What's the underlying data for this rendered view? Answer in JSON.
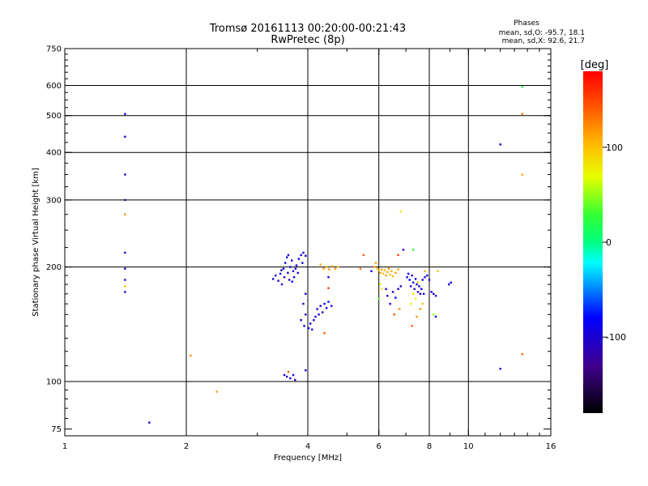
{
  "chart_data": {
    "type": "scatter",
    "title_line1": "Tromsø 20161113 00:20:00-00:21:43",
    "title_line2": "RwPretec (8p)",
    "info": {
      "heading": "Phases",
      "line1": "mean, sd,O: -95.7, 18.1",
      "line2": "mean, sd,X:  92.6, 21.7"
    },
    "xlabel": "Frequency [MHz]",
    "ylabel": "Stationary phase Virtual Height [km]",
    "xscale": "log",
    "yscale": "log",
    "xlim": [
      1,
      16
    ],
    "ylim": [
      72,
      750
    ],
    "xticks": [
      1,
      2,
      4,
      6,
      8,
      10,
      16
    ],
    "xtick_labels": [
      "1",
      "2",
      "4",
      "6",
      "8",
      "10",
      "16"
    ],
    "x_gridlines": [
      2,
      4,
      6,
      8,
      10
    ],
    "yticks": [
      75,
      100,
      200,
      300,
      400,
      500,
      600,
      750
    ],
    "ytick_labels": [
      "75",
      "100",
      "200",
      "300",
      "400",
      "500",
      "600",
      "750"
    ],
    "y_gridlines": [
      100,
      200,
      300,
      400,
      500,
      600
    ],
    "colorbar": {
      "label": "[deg]",
      "min": -180,
      "max": 180,
      "ticks": [
        100,
        0,
        -100
      ],
      "tick_labels": [
        "100",
        "0",
        "-100"
      ]
    },
    "points": [
      {
        "x": 1.41,
        "y": 505,
        "phase": -110
      },
      {
        "x": 1.41,
        "y": 440,
        "phase": -115
      },
      {
        "x": 1.41,
        "y": 350,
        "phase": -110
      },
      {
        "x": 1.41,
        "y": 300,
        "phase": -125
      },
      {
        "x": 1.41,
        "y": 275,
        "phase": 120
      },
      {
        "x": 1.41,
        "y": 218,
        "phase": -110
      },
      {
        "x": 1.41,
        "y": 198,
        "phase": -115
      },
      {
        "x": 1.41,
        "y": 185,
        "phase": -120
      },
      {
        "x": 1.41,
        "y": 178,
        "phase": 95
      },
      {
        "x": 1.41,
        "y": 172,
        "phase": -118
      },
      {
        "x": 1.62,
        "y": 78,
        "phase": -110
      },
      {
        "x": 2.05,
        "y": 117,
        "phase": 120
      },
      {
        "x": 2.38,
        "y": 94,
        "phase": 115
      },
      {
        "x": 3.28,
        "y": 186,
        "phase": -110
      },
      {
        "x": 3.33,
        "y": 190,
        "phase": -105
      },
      {
        "x": 3.38,
        "y": 184,
        "phase": -115
      },
      {
        "x": 3.42,
        "y": 192,
        "phase": -100
      },
      {
        "x": 3.45,
        "y": 180,
        "phase": -110
      },
      {
        "x": 3.48,
        "y": 198,
        "phase": -105
      },
      {
        "x": 3.5,
        "y": 188,
        "phase": -120
      },
      {
        "x": 3.52,
        "y": 205,
        "phase": -110
      },
      {
        "x": 3.55,
        "y": 212,
        "phase": -100
      },
      {
        "x": 3.57,
        "y": 193,
        "phase": -108
      },
      {
        "x": 3.6,
        "y": 185,
        "phase": -115
      },
      {
        "x": 3.62,
        "y": 200,
        "phase": -105
      },
      {
        "x": 3.65,
        "y": 208,
        "phase": -112
      },
      {
        "x": 3.68,
        "y": 195,
        "phase": -110
      },
      {
        "x": 3.7,
        "y": 188,
        "phase": -100
      },
      {
        "x": 3.73,
        "y": 198,
        "phase": -115
      },
      {
        "x": 3.75,
        "y": 202,
        "phase": -105
      },
      {
        "x": 3.78,
        "y": 193,
        "phase": -110
      },
      {
        "x": 3.8,
        "y": 210,
        "phase": -100
      },
      {
        "x": 3.85,
        "y": 215,
        "phase": -108
      },
      {
        "x": 3.9,
        "y": 218,
        "phase": -112
      },
      {
        "x": 3.95,
        "y": 214,
        "phase": -105
      },
      {
        "x": 3.58,
        "y": 215,
        "phase": -110
      },
      {
        "x": 3.44,
        "y": 196,
        "phase": -115
      },
      {
        "x": 3.66,
        "y": 183,
        "phase": -100
      },
      {
        "x": 3.88,
        "y": 205,
        "phase": -110
      },
      {
        "x": 3.5,
        "y": 104,
        "phase": -110
      },
      {
        "x": 3.55,
        "y": 103,
        "phase": -115
      },
      {
        "x": 3.58,
        "y": 106,
        "phase": 140
      },
      {
        "x": 3.62,
        "y": 102,
        "phase": -105
      },
      {
        "x": 3.68,
        "y": 104,
        "phase": -110
      },
      {
        "x": 3.72,
        "y": 101,
        "phase": -120
      },
      {
        "x": 3.95,
        "y": 107,
        "phase": -110
      },
      {
        "x": 3.95,
        "y": 170,
        "phase": -110
      },
      {
        "x": 3.9,
        "y": 160,
        "phase": -115
      },
      {
        "x": 3.95,
        "y": 150,
        "phase": -110
      },
      {
        "x": 3.85,
        "y": 145,
        "phase": -105
      },
      {
        "x": 3.92,
        "y": 140,
        "phase": -110
      },
      {
        "x": 4.02,
        "y": 138,
        "phase": -100
      },
      {
        "x": 4.06,
        "y": 142,
        "phase": -110
      },
      {
        "x": 4.1,
        "y": 137,
        "phase": -115
      },
      {
        "x": 4.14,
        "y": 145,
        "phase": -110
      },
      {
        "x": 4.18,
        "y": 148,
        "phase": -105
      },
      {
        "x": 4.22,
        "y": 155,
        "phase": -112
      },
      {
        "x": 4.26,
        "y": 150,
        "phase": -108
      },
      {
        "x": 4.3,
        "y": 158,
        "phase": -110
      },
      {
        "x": 4.35,
        "y": 152,
        "phase": -115
      },
      {
        "x": 4.4,
        "y": 160,
        "phase": -105
      },
      {
        "x": 4.45,
        "y": 156,
        "phase": -110
      },
      {
        "x": 4.5,
        "y": 162,
        "phase": -100
      },
      {
        "x": 4.58,
        "y": 158,
        "phase": -110
      },
      {
        "x": 4.4,
        "y": 134,
        "phase": 140
      },
      {
        "x": 4.5,
        "y": 176,
        "phase": 150
      },
      {
        "x": 4.3,
        "y": 203,
        "phase": 110
      },
      {
        "x": 4.38,
        "y": 198,
        "phase": 115
      },
      {
        "x": 4.45,
        "y": 200,
        "phase": 105
      },
      {
        "x": 4.52,
        "y": 197,
        "phase": 120
      },
      {
        "x": 4.6,
        "y": 201,
        "phase": 110
      },
      {
        "x": 4.68,
        "y": 198,
        "phase": 115
      },
      {
        "x": 4.75,
        "y": 200,
        "phase": 100
      },
      {
        "x": 4.5,
        "y": 188,
        "phase": -110
      },
      {
        "x": 5.4,
        "y": 198,
        "phase": 130
      },
      {
        "x": 5.5,
        "y": 215,
        "phase": 140
      },
      {
        "x": 5.75,
        "y": 195,
        "phase": -110
      },
      {
        "x": 5.85,
        "y": 200,
        "phase": 110
      },
      {
        "x": 5.9,
        "y": 205,
        "phase": 120
      },
      {
        "x": 5.95,
        "y": 198,
        "phase": 100
      },
      {
        "x": 6.0,
        "y": 196,
        "phase": 105
      },
      {
        "x": 6.05,
        "y": 193,
        "phase": 115
      },
      {
        "x": 6.1,
        "y": 197,
        "phase": 110
      },
      {
        "x": 6.15,
        "y": 192,
        "phase": 100
      },
      {
        "x": 6.2,
        "y": 196,
        "phase": 105
      },
      {
        "x": 6.25,
        "y": 190,
        "phase": 115
      },
      {
        "x": 6.3,
        "y": 194,
        "phase": 110
      },
      {
        "x": 6.35,
        "y": 198,
        "phase": 120
      },
      {
        "x": 6.4,
        "y": 191,
        "phase": 105
      },
      {
        "x": 6.45,
        "y": 195,
        "phase": 110
      },
      {
        "x": 6.5,
        "y": 189,
        "phase": 100
      },
      {
        "x": 6.6,
        "y": 193,
        "phase": 115
      },
      {
        "x": 6.7,
        "y": 197,
        "phase": 110
      },
      {
        "x": 6.05,
        "y": 180,
        "phase": 70
      },
      {
        "x": 6.1,
        "y": 175,
        "phase": 80
      },
      {
        "x": 6.0,
        "y": 165,
        "phase": 40
      },
      {
        "x": 6.25,
        "y": 175,
        "phase": -110
      },
      {
        "x": 6.3,
        "y": 168,
        "phase": -115
      },
      {
        "x": 6.4,
        "y": 160,
        "phase": -105
      },
      {
        "x": 6.5,
        "y": 172,
        "phase": -110
      },
      {
        "x": 6.6,
        "y": 166,
        "phase": -100
      },
      {
        "x": 6.7,
        "y": 175,
        "phase": -110
      },
      {
        "x": 6.8,
        "y": 178,
        "phase": -115
      },
      {
        "x": 6.55,
        "y": 150,
        "phase": 140
      },
      {
        "x": 6.75,
        "y": 155,
        "phase": 120
      },
      {
        "x": 6.8,
        "y": 280,
        "phase": 80
      },
      {
        "x": 6.7,
        "y": 215,
        "phase": 150
      },
      {
        "x": 6.9,
        "y": 222,
        "phase": -110
      },
      {
        "x": 7.05,
        "y": 188,
        "phase": -105
      },
      {
        "x": 7.1,
        "y": 192,
        "phase": -110
      },
      {
        "x": 7.15,
        "y": 185,
        "phase": -100
      },
      {
        "x": 7.2,
        "y": 178,
        "phase": -110
      },
      {
        "x": 7.25,
        "y": 190,
        "phase": -115
      },
      {
        "x": 7.3,
        "y": 182,
        "phase": -105
      },
      {
        "x": 7.35,
        "y": 175,
        "phase": -110
      },
      {
        "x": 7.4,
        "y": 186,
        "phase": -100
      },
      {
        "x": 7.45,
        "y": 180,
        "phase": -110
      },
      {
        "x": 7.5,
        "y": 172,
        "phase": -115
      },
      {
        "x": 7.55,
        "y": 178,
        "phase": -105
      },
      {
        "x": 7.6,
        "y": 170,
        "phase": -110
      },
      {
        "x": 7.65,
        "y": 175,
        "phase": -100
      },
      {
        "x": 7.7,
        "y": 185,
        "phase": -110
      },
      {
        "x": 7.8,
        "y": 188,
        "phase": -105
      },
      {
        "x": 7.9,
        "y": 190,
        "phase": -110
      },
      {
        "x": 8.0,
        "y": 185,
        "phase": -115
      },
      {
        "x": 7.2,
        "y": 160,
        "phase": 80
      },
      {
        "x": 7.3,
        "y": 170,
        "phase": 85
      },
      {
        "x": 7.4,
        "y": 165,
        "phase": 75
      },
      {
        "x": 7.5,
        "y": 182,
        "phase": 90
      },
      {
        "x": 7.6,
        "y": 155,
        "phase": 120
      },
      {
        "x": 7.7,
        "y": 160,
        "phase": 100
      },
      {
        "x": 7.8,
        "y": 195,
        "phase": 110
      },
      {
        "x": 7.25,
        "y": 140,
        "phase": 140
      },
      {
        "x": 7.3,
        "y": 222,
        "phase": 20
      },
      {
        "x": 7.45,
        "y": 148,
        "phase": 115
      },
      {
        "x": 7.75,
        "y": 170,
        "phase": -110
      },
      {
        "x": 8.1,
        "y": 172,
        "phase": -110
      },
      {
        "x": 8.2,
        "y": 170,
        "phase": -115
      },
      {
        "x": 8.3,
        "y": 168,
        "phase": -105
      },
      {
        "x": 8.4,
        "y": 195,
        "phase": 90
      },
      {
        "x": 8.2,
        "y": 150,
        "phase": 50
      },
      {
        "x": 8.3,
        "y": 148,
        "phase": -110
      },
      {
        "x": 8.95,
        "y": 180,
        "phase": -110
      },
      {
        "x": 9.05,
        "y": 182,
        "phase": -105
      },
      {
        "x": 12.0,
        "y": 420,
        "phase": -115
      },
      {
        "x": 12.0,
        "y": 108,
        "phase": -110
      },
      {
        "x": 13.6,
        "y": 595,
        "phase": 20
      },
      {
        "x": 13.6,
        "y": 505,
        "phase": 130
      },
      {
        "x": 13.6,
        "y": 350,
        "phase": 110
      },
      {
        "x": 13.6,
        "y": 118,
        "phase": 130
      }
    ]
  }
}
